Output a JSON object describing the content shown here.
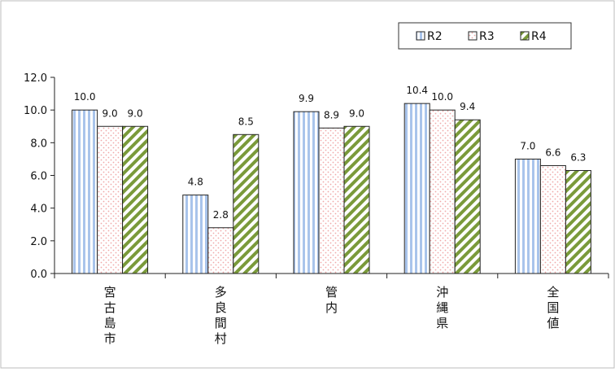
{
  "chart_data": {
    "type": "bar",
    "categories": [
      "宮古島市",
      "多良間村",
      "管内",
      "沖縄県",
      "全国値"
    ],
    "series": [
      {
        "name": "R2",
        "values": [
          10.0,
          4.8,
          9.9,
          10.4,
          7.0
        ],
        "color": "#a9c4eb",
        "pattern": "vertical-stripes"
      },
      {
        "name": "R3",
        "values": [
          9.0,
          2.8,
          8.9,
          10.0,
          6.6
        ],
        "color": "#f3b6b6",
        "pattern": "dots"
      },
      {
        "name": "R4",
        "values": [
          9.0,
          8.5,
          9.0,
          9.4,
          6.3
        ],
        "color": "#7a9a3a",
        "pattern": "diagonal-stripes"
      }
    ],
    "value_labels": [
      [
        "10.0",
        "4.8",
        "9.9",
        "10.4",
        "7.0"
      ],
      [
        "9.0",
        "2.8",
        "8.9",
        "10.0",
        "6.6"
      ],
      [
        "9.0",
        "8.5",
        "9.0",
        "9.4",
        "6.3"
      ]
    ],
    "yticks": [
      "0.0",
      "2.0",
      "4.0",
      "6.0",
      "8.0",
      "10.0",
      "12.0"
    ],
    "ylim": [
      0,
      12
    ],
    "title": "",
    "xlabel": "",
    "ylabel": "",
    "grid": false,
    "legend_position": "top-right"
  }
}
